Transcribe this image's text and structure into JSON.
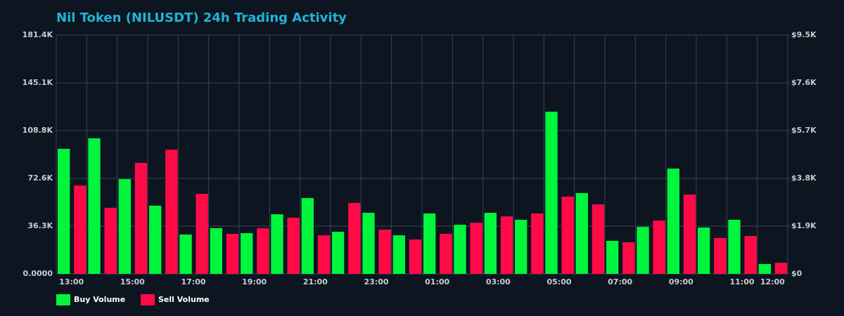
{
  "chart_data": {
    "type": "bar",
    "title": "Nil Token (NILUSDT) 24h Trading Activity",
    "categories": [
      "13:00",
      null,
      "15:00",
      null,
      "17:00",
      null,
      "19:00",
      null,
      "21:00",
      null,
      "23:00",
      null,
      "01:00",
      null,
      "03:00",
      null,
      "05:00",
      null,
      "07:00",
      null,
      "09:00",
      null,
      "11:00",
      "12:00"
    ],
    "series": [
      {
        "name": "Buy Volume",
        "color": "#00f53c",
        "values": [
          95000,
          103000,
          72000,
          51800,
          29900,
          34700,
          30900,
          45300,
          57600,
          32000,
          46400,
          29300,
          45900,
          37300,
          46400,
          41100,
          123200,
          61400,
          25100,
          35700,
          80000,
          35200,
          41100,
          7500
        ]
      },
      {
        "name": "Sell Volume",
        "color": "#ff0a47",
        "values": [
          67200,
          50200,
          84300,
          94400,
          60800,
          30400,
          34700,
          42700,
          29300,
          53900,
          33600,
          26100,
          30400,
          38900,
          43700,
          45900,
          58700,
          52800,
          24000,
          40500,
          60300,
          27200,
          28800,
          8500
        ]
      }
    ],
    "ylim": [
      0,
      181400
    ],
    "yticks": [
      {
        "value": 0,
        "label": "0.0000"
      },
      {
        "value": 36280,
        "label": "36.3K"
      },
      {
        "value": 72560,
        "label": "72.6K"
      },
      {
        "value": 108840,
        "label": "108.8K"
      },
      {
        "value": 145120,
        "label": "145.1K"
      },
      {
        "value": 181400,
        "label": "181.4K"
      }
    ],
    "y2lim": [
      0,
      9500
    ],
    "y2ticks": [
      {
        "value": 0,
        "label": "$0"
      },
      {
        "value": 1900,
        "label": "$1.9K"
      },
      {
        "value": 3800,
        "label": "$3.8K"
      },
      {
        "value": 5700,
        "label": "$5.7K"
      },
      {
        "value": 7600,
        "label": "$7.6K"
      },
      {
        "value": 9500,
        "label": "$9.5K"
      }
    ],
    "grid": true,
    "legend_position": "bottom-left"
  }
}
